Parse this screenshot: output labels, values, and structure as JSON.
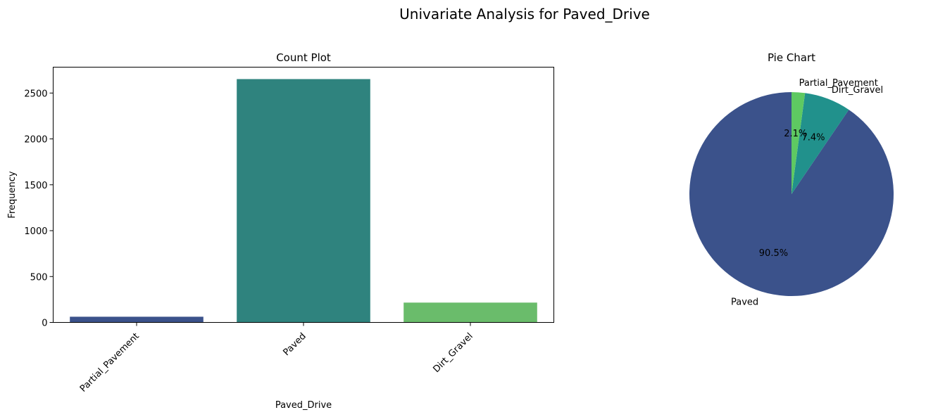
{
  "suptitle": "Univariate Analysis for Paved_Drive",
  "chart_data": [
    {
      "type": "bar",
      "title": "Count Plot",
      "xlabel": "Paved_Drive",
      "ylabel": "Frequency",
      "categories": [
        "Partial_Pavement",
        "Paved",
        "Dirt_Gravel"
      ],
      "values": [
        62,
        2652,
        216
      ],
      "colors": [
        "#3b528b",
        "#2f837e",
        "#6abc6b"
      ],
      "ylim": [
        0,
        2782
      ],
      "yticks": [
        0,
        500,
        1000,
        1500,
        2000,
        2500
      ],
      "ytick_labels": [
        "0",
        "500",
        "1000",
        "1500",
        "2000",
        "2500"
      ],
      "grid": false
    },
    {
      "type": "pie",
      "title": "Pie Chart",
      "labels": [
        "Paved",
        "Dirt_Gravel",
        "Partial_Pavement"
      ],
      "values": [
        2652,
        216,
        62
      ],
      "percent_labels": [
        "90.5%",
        "7.4%",
        "2.1%"
      ],
      "colors": [
        "#3b528b",
        "#21918c",
        "#5ec962"
      ]
    }
  ]
}
